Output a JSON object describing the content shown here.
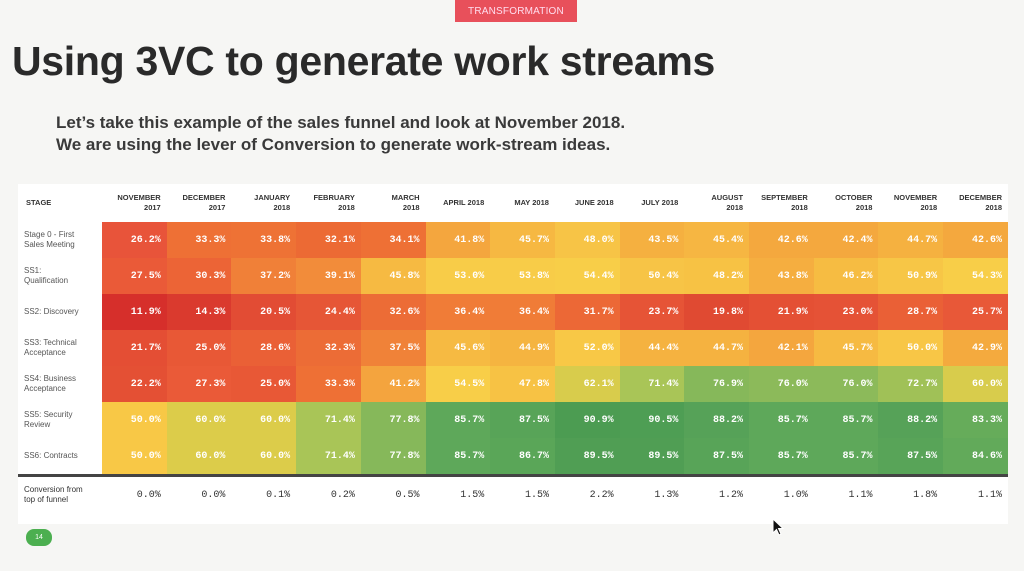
{
  "header": {
    "tag": "TRANSFORMATION",
    "title": "Using 3VC to generate work streams",
    "subtitle_line1": "Let’s take this example of the sales funnel and look at November 2018.",
    "subtitle_line2": "We are using the lever of Conversion to generate work-stream ideas."
  },
  "table": {
    "columns": [
      {
        "line1": "STAGE",
        "line2": ""
      },
      {
        "line1": "NOVEMBER",
        "line2": "2017"
      },
      {
        "line1": "DECEMBER",
        "line2": "2017"
      },
      {
        "line1": "JANUARY",
        "line2": "2018"
      },
      {
        "line1": "FEBRUARY",
        "line2": "2018"
      },
      {
        "line1": "MARCH",
        "line2": "2018"
      },
      {
        "line1": "APRIL 2018",
        "line2": ""
      },
      {
        "line1": "MAY 2018",
        "line2": ""
      },
      {
        "line1": "JUNE 2018",
        "line2": ""
      },
      {
        "line1": "JULY 2018",
        "line2": ""
      },
      {
        "line1": "AUGUST",
        "line2": "2018"
      },
      {
        "line1": "SEPTEMBER",
        "line2": "2018"
      },
      {
        "line1": "OCTOBER",
        "line2": "2018"
      },
      {
        "line1": "NOVEMBER",
        "line2": "2018"
      },
      {
        "line1": "DECEMBER",
        "line2": "2018"
      }
    ],
    "rows": [
      {
        "l1": "Stage 0 - First",
        "l2": "Sales Meeting",
        "cells": [
          "26.2%",
          "33.3%",
          "33.8%",
          "32.1%",
          "34.1%",
          "41.8%",
          "45.7%",
          "48.0%",
          "43.5%",
          "45.4%",
          "42.6%",
          "42.4%",
          "44.7%",
          "42.6%"
        ],
        "colors": [
          "#e8543a",
          "#ee7035",
          "#ee7235",
          "#ec6a34",
          "#ee7035",
          "#f4a63e",
          "#f6b842",
          "#f7c446",
          "#f5b040",
          "#f6b642",
          "#f4a83e",
          "#f4a83e",
          "#f5b140",
          "#f4a83e"
        ]
      },
      {
        "l1": "SS1:",
        "l2": "Qualification",
        "cells": [
          "27.5%",
          "30.3%",
          "37.2%",
          "39.1%",
          "45.8%",
          "53.0%",
          "53.8%",
          "54.4%",
          "50.4%",
          "48.2%",
          "43.8%",
          "46.2%",
          "50.9%",
          "54.3%"
        ],
        "colors": [
          "#ea5a38",
          "#ec6436",
          "#f08038",
          "#f28c3a",
          "#f6ba42",
          "#f8cc48",
          "#f8cc48",
          "#f8ce48",
          "#f7c446",
          "#f7c244",
          "#f5ae40",
          "#f6bc42",
          "#f7c646",
          "#f8ce48"
        ]
      },
      {
        "l1": "SS2: Discovery",
        "l2": "",
        "cells": [
          "11.9%",
          "14.3%",
          "20.5%",
          "24.4%",
          "32.6%",
          "36.4%",
          "36.4%",
          "31.7%",
          "23.7%",
          "19.8%",
          "21.9%",
          "23.0%",
          "28.7%",
          "25.7%"
        ],
        "colors": [
          "#d62f2b",
          "#da3a2e",
          "#e24c34",
          "#e65636",
          "#ec6c36",
          "#f07c37",
          "#f07c37",
          "#ec6836",
          "#e65436",
          "#e04a32",
          "#e45034",
          "#e55236",
          "#ea6036",
          "#e85838"
        ]
      },
      {
        "l1": "SS3: Technical",
        "l2": "Acceptance",
        "cells": [
          "21.7%",
          "25.0%",
          "28.6%",
          "32.3%",
          "37.5%",
          "45.6%",
          "44.9%",
          "52.0%",
          "44.4%",
          "44.7%",
          "42.1%",
          "45.7%",
          "50.0%",
          "42.9%"
        ],
        "colors": [
          "#e44e34",
          "#e85836",
          "#ea6036",
          "#ec6c36",
          "#f08238",
          "#f6ba42",
          "#f5b440",
          "#f8c846",
          "#f5b240",
          "#f5b240",
          "#f4a63e",
          "#f6ba42",
          "#f8c646",
          "#f4aa3e"
        ]
      },
      {
        "l1": "SS4:  Business",
        "l2": "Acceptance",
        "cells": [
          "22.2%",
          "27.3%",
          "25.0%",
          "33.3%",
          "41.2%",
          "54.5%",
          "47.8%",
          "62.1%",
          "71.4%",
          "76.9%",
          "76.0%",
          "76.0%",
          "72.7%",
          "60.0%"
        ],
        "colors": [
          "#e45034",
          "#ea5a38",
          "#e85836",
          "#ee7035",
          "#f4a43e",
          "#f8ce48",
          "#f7c244",
          "#d8cc4c",
          "#a9c557",
          "#86b85a",
          "#8cba5a",
          "#8cba5a",
          "#a0c157",
          "#d8cc4c"
        ]
      },
      {
        "l1": "SS5: Security",
        "l2": "Review",
        "cells": [
          "50.0%",
          "60.0%",
          "60.0%",
          "71.4%",
          "77.8%",
          "85.7%",
          "87.5%",
          "90.9%",
          "90.5%",
          "88.2%",
          "85.7%",
          "85.7%",
          "88.2%",
          "83.3%"
        ],
        "colors": [
          "#f8c846",
          "#dccc4a",
          "#dccc4a",
          "#a9c557",
          "#86b85a",
          "#5ea85a",
          "#58a458",
          "#4c9c52",
          "#4e9e54",
          "#56a258",
          "#5ea85a",
          "#5ea85a",
          "#56a258",
          "#66ac5a"
        ]
      },
      {
        "l1": "SS6: Contracts",
        "l2": "",
        "cells": [
          "50.0%",
          "60.0%",
          "60.0%",
          "71.4%",
          "77.8%",
          "85.7%",
          "86.7%",
          "89.5%",
          "89.5%",
          "87.5%",
          "85.7%",
          "85.7%",
          "87.5%",
          "84.6%"
        ],
        "colors": [
          "#f8c846",
          "#dccc4a",
          "#dccc4a",
          "#a9c557",
          "#86b85a",
          "#5ea85a",
          "#5aa658",
          "#509e54",
          "#509e54",
          "#58a458",
          "#5ea85a",
          "#5ea85a",
          "#58a458",
          "#62aa5a"
        ]
      }
    ],
    "conversion": {
      "l1": "Conversion from",
      "l2": "top of funnel",
      "cells": [
        "0.0%",
        "0.0%",
        "0.1%",
        "0.2%",
        "0.5%",
        "1.5%",
        "1.5%",
        "2.2%",
        "1.3%",
        "1.2%",
        "1.0%",
        "1.1%",
        "1.8%",
        "1.1%"
      ]
    }
  },
  "footer": {
    "page_number": "14"
  }
}
